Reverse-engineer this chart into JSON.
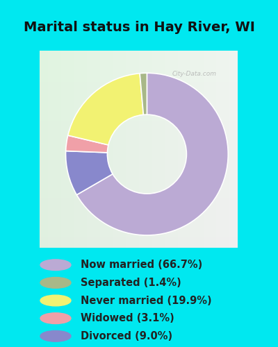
{
  "title": "Marital status in Hay River, WI",
  "wedge_values": [
    66.7,
    9.0,
    3.1,
    19.9,
    1.4
  ],
  "wedge_colors": [
    "#bbaad4",
    "#8888cc",
    "#f0a0a8",
    "#f2f272",
    "#a8b888"
  ],
  "legend_colors": [
    "#bbaad4",
    "#a8b888",
    "#f2f272",
    "#f0a0a8",
    "#8888cc"
  ],
  "legend_labels": [
    "Now married (66.7%)",
    "Separated (1.4%)",
    "Never married (19.9%)",
    "Widowed (3.1%)",
    "Divorced (9.0%)"
  ],
  "title_fontsize": 14,
  "title_color": "#111111",
  "bg_cyan": "#00e8f0",
  "bg_chart_top": "#d8ece0",
  "bg_chart_bottom": "#c8e8d0",
  "watermark": "City-Data.com",
  "legend_fontsize": 10.5,
  "legend_text_color": "#222222"
}
